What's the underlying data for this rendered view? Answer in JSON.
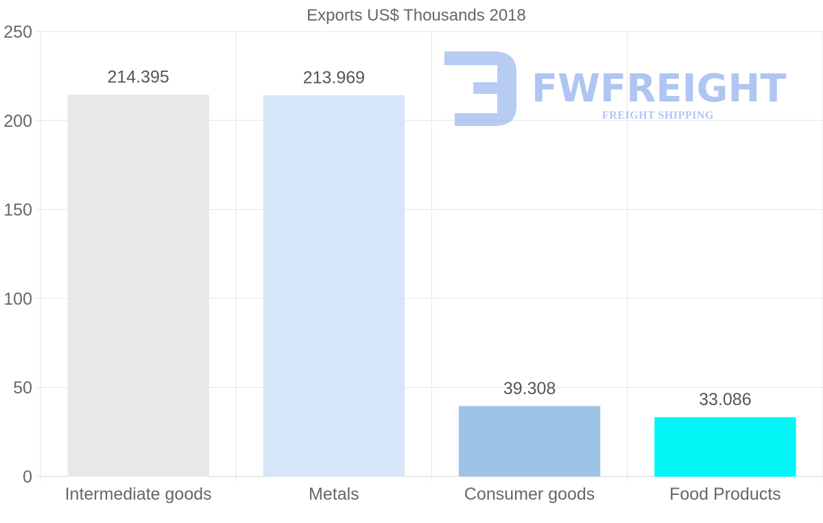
{
  "chart_data": {
    "type": "bar",
    "title": "Exports US$ Thousands 2018",
    "categories": [
      "Intermediate goods",
      "Metals",
      "Consumer goods",
      "Food Products"
    ],
    "values": [
      214.395,
      213.969,
      39.308,
      33.086
    ],
    "value_labels": [
      "214.395",
      "213.969",
      "39.308",
      "33.086"
    ],
    "colors": [
      "#e8e8e8",
      "#d6e6f8",
      "#9dc3e6",
      "#00f5f5"
    ],
    "ylim": [
      0,
      250
    ],
    "yticks": [
      0,
      50,
      100,
      150,
      200,
      250
    ],
    "xlabel": "",
    "ylabel": "",
    "grid": true,
    "legend": "none"
  },
  "watermark": {
    "brand": "FWFREIGHT",
    "tagline": "FREIGHT SHIPPING",
    "color": "#6f97e8"
  }
}
